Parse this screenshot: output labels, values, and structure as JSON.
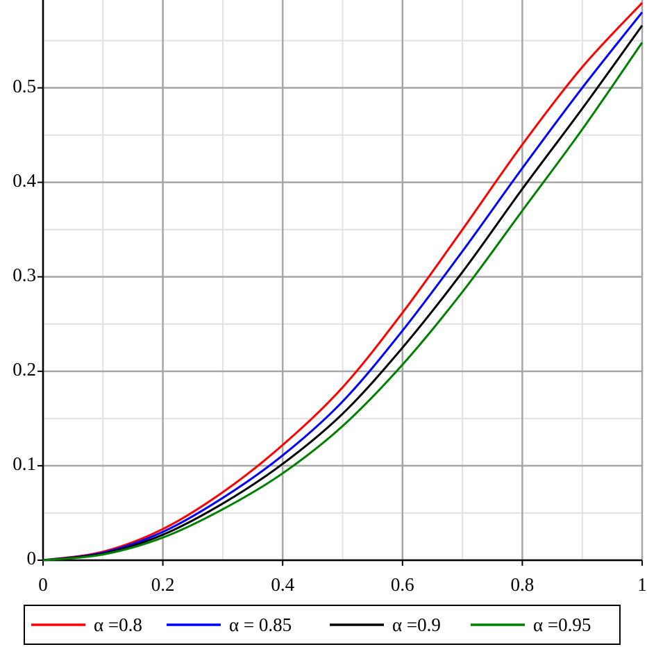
{
  "chart_data": {
    "type": "line",
    "x": [
      0,
      0.1,
      0.2,
      0.3,
      0.4,
      0.5,
      0.6,
      0.7,
      0.8,
      0.9,
      1
    ],
    "series": [
      {
        "name": "α =0.8",
        "color": "#ff0000",
        "values": [
          0,
          0.009,
          0.033,
          0.072,
          0.122,
          0.183,
          0.262,
          0.35,
          0.44,
          0.522,
          0.59
        ]
      },
      {
        "name": "α = 0.85",
        "color": "#0000ff",
        "values": [
          0,
          0.008,
          0.03,
          0.066,
          0.111,
          0.168,
          0.243,
          0.327,
          0.415,
          0.5,
          0.58
        ]
      },
      {
        "name": "α =0.9",
        "color": "#000000",
        "values": [
          0,
          0.007,
          0.027,
          0.06,
          0.102,
          0.155,
          0.225,
          0.305,
          0.393,
          0.478,
          0.566
        ]
      },
      {
        "name": "α =0.95",
        "color": "#008000",
        "values": [
          0,
          0.006,
          0.024,
          0.054,
          0.092,
          0.142,
          0.207,
          0.284,
          0.37,
          0.456,
          0.548
        ]
      }
    ],
    "xlim": [
      0,
      1
    ],
    "ylim": [
      0,
      0.593
    ],
    "xticks": [
      0,
      0.2,
      0.4,
      0.6,
      0.8,
      1
    ],
    "yticks": [
      0,
      0.1,
      0.2,
      0.3,
      0.4,
      0.5
    ],
    "xminor": [
      0.1,
      0.3,
      0.5,
      0.7,
      0.9
    ],
    "yminor": [
      0.05,
      0.15,
      0.25,
      0.35,
      0.45,
      0.55
    ],
    "grid": true,
    "legend": "bottom"
  }
}
